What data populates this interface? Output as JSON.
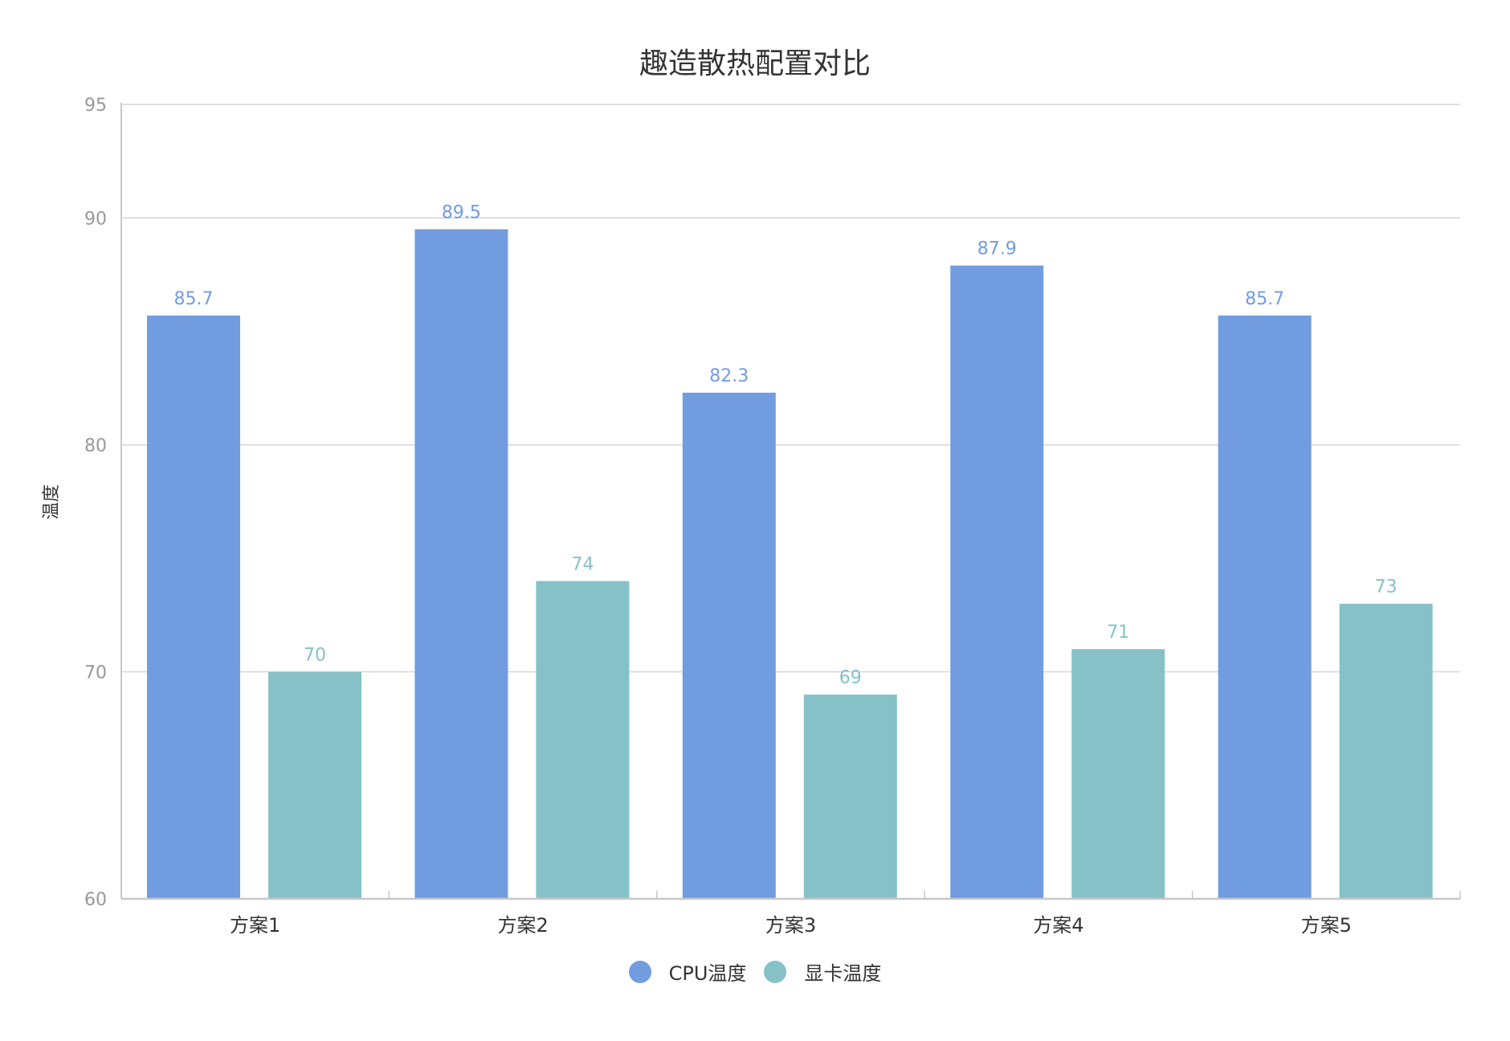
{
  "chart_data": {
    "type": "bar",
    "title": "趣造散热配置对比",
    "xlabel": "",
    "ylabel": "温度",
    "categories": [
      "方案1",
      "方案2",
      "方案3",
      "方案4",
      "方案5"
    ],
    "series": [
      {
        "name": "CPU温度",
        "color": "#729CE0",
        "values": [
          85.7,
          89.5,
          82.3,
          87.9,
          85.7
        ]
      },
      {
        "name": "显卡温度",
        "color": "#86C1C8",
        "values": [
          70,
          74,
          69,
          71,
          73
        ]
      }
    ],
    "ylim": [
      60,
      95
    ],
    "yticks": [
      60,
      70,
      80,
      90,
      95
    ],
    "grid": true,
    "legend_position": "bottom",
    "data_labels": true
  },
  "colors": {
    "title": "#333333",
    "axis_label": "#333333",
    "tick_label": "#999999",
    "category_label": "#333333",
    "grid": "#D6D6D6",
    "axis": "#C8C8C8"
  }
}
